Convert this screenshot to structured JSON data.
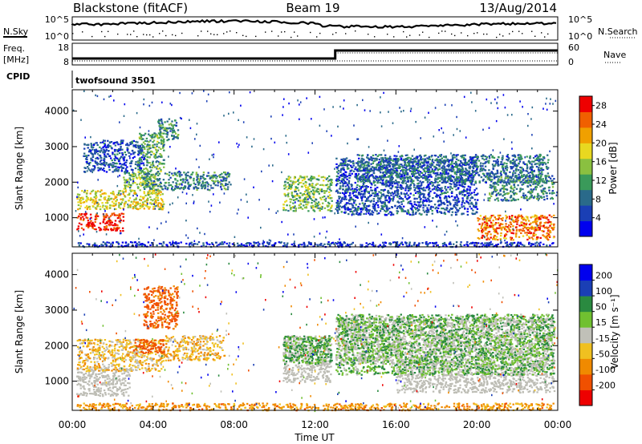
{
  "header": {
    "station": "Blackstone (fitACF)",
    "beam": "Beam 19",
    "date": "13/Aug/2014"
  },
  "aux_panels": {
    "nsky_label": "N.Sky",
    "nsearch_label": "N.Search",
    "noise_ticks": [
      "10^5",
      "10^0"
    ],
    "freq_label": "Freq.",
    "freq_unit": "[MHz]",
    "freq_ticks": [
      "18",
      "8"
    ],
    "nave_label": "Nave",
    "nave_ticks": [
      "60",
      "0"
    ],
    "cpid_label": "CPID",
    "cpid_value": "twofsound 3501"
  },
  "colors": {
    "power_scale": [
      "#0000ee",
      "#1a3fb5",
      "#2a6a8a",
      "#3a9a5a",
      "#8ac040",
      "#e8d820",
      "#f0a000",
      "#f06000",
      "#ee0000"
    ],
    "velocity_scale": [
      "#ee0000",
      "#f05000",
      "#f08a00",
      "#f0c020",
      "#c0c0b8",
      "#70c030",
      "#2a8a40",
      "#1a3fb5",
      "#0000ee"
    ],
    "ground_scatter": "#bdbdb5"
  },
  "chart_data": [
    {
      "type": "heatmap",
      "panel": "power",
      "xlabel": "",
      "ylabel": "Slant Range [km]",
      "x_ticks": [
        "00:00",
        "04:00",
        "08:00",
        "12:00",
        "16:00",
        "20:00",
        "00:00"
      ],
      "y_ticks": [
        1000,
        2000,
        3000,
        4000
      ],
      "xlim": [
        0,
        24
      ],
      "ylim": [
        180,
        4600
      ],
      "colorbar": {
        "label": "Power [dB]",
        "ticks": [
          4,
          8,
          12,
          16,
          20,
          24,
          28
        ],
        "range": [
          0,
          30
        ]
      },
      "regions": [
        {
          "t": [
            0.2,
            2.5
          ],
          "r": [
            650,
            1150
          ],
          "v": 28
        },
        {
          "t": [
            0.2,
            4.5
          ],
          "r": [
            1250,
            1800
          ],
          "v": 18
        },
        {
          "t": [
            2.5,
            4.2
          ],
          "r": [
            1800,
            2300
          ],
          "v": 14
        },
        {
          "t": [
            3.5,
            7.8
          ],
          "r": [
            1800,
            2300
          ],
          "v": 10
        },
        {
          "t": [
            3.2,
            4.5
          ],
          "r": [
            2300,
            3400
          ],
          "v": 12
        },
        {
          "t": [
            4.2,
            5.2
          ],
          "r": [
            3200,
            3800
          ],
          "v": 10
        },
        {
          "t": [
            0.5,
            3.5
          ],
          "r": [
            2300,
            3200
          ],
          "v": 6
        },
        {
          "t": [
            10.4,
            12.8
          ],
          "r": [
            1200,
            2200
          ],
          "v": 14
        },
        {
          "t": [
            13.0,
            20.0
          ],
          "r": [
            1100,
            2700
          ],
          "v": 6
        },
        {
          "t": [
            14.0,
            23.5
          ],
          "r": [
            2000,
            2800
          ],
          "v": 8
        },
        {
          "t": [
            20.5,
            23.8
          ],
          "r": [
            1500,
            2200
          ],
          "v": 10
        },
        {
          "t": [
            20.0,
            23.8
          ],
          "r": [
            400,
            1100
          ],
          "v": 24
        },
        {
          "t": [
            0.2,
            23.8
          ],
          "r": [
            200,
            340
          ],
          "v": 4
        }
      ]
    },
    {
      "type": "heatmap",
      "panel": "velocity",
      "xlabel": "Time UT",
      "ylabel": "Slant Range [km]",
      "x_ticks": [
        "00:00",
        "04:00",
        "08:00",
        "12:00",
        "16:00",
        "20:00",
        "00:00"
      ],
      "y_ticks": [
        1000,
        2000,
        3000,
        4000
      ],
      "xlim": [
        0,
        24
      ],
      "ylim": [
        180,
        4600
      ],
      "colorbar": {
        "label": "Velocity [m s⁻¹]",
        "ticks": [
          "200",
          "100",
          "50",
          "15",
          "-15",
          "-50",
          "-100",
          "-200"
        ],
        "range": [
          -250,
          250
        ]
      },
      "regions": [
        {
          "t": [
            0.2,
            2.8
          ],
          "r": [
            600,
            1400
          ],
          "v": "ground"
        },
        {
          "t": [
            0.2,
            4.5
          ],
          "r": [
            1300,
            2200
          ],
          "v": -30
        },
        {
          "t": [
            3.0,
            4.5
          ],
          "r": [
            1800,
            2200
          ],
          "v": -150
        },
        {
          "t": [
            4.5,
            7.5
          ],
          "r": [
            1600,
            2300
          ],
          "v": -40
        },
        {
          "t": [
            3.5,
            5.2
          ],
          "r": [
            2500,
            3700
          ],
          "v": -120
        },
        {
          "t": [
            10.4,
            12.8
          ],
          "r": [
            1000,
            2300
          ],
          "v": "ground"
        },
        {
          "t": [
            10.4,
            12.8
          ],
          "r": [
            1500,
            2300
          ],
          "v": 60
        },
        {
          "t": [
            13.0,
            23.8
          ],
          "r": [
            1500,
            2800
          ],
          "v": "ground"
        },
        {
          "t": [
            16.0,
            23.8
          ],
          "r": [
            700,
            1500
          ],
          "v": "ground"
        },
        {
          "t": [
            13.0,
            23.8
          ],
          "r": [
            1200,
            2900
          ],
          "v": 40
        },
        {
          "t": [
            0.2,
            23.8
          ],
          "r": [
            200,
            400
          ],
          "v": -70
        }
      ]
    }
  ]
}
